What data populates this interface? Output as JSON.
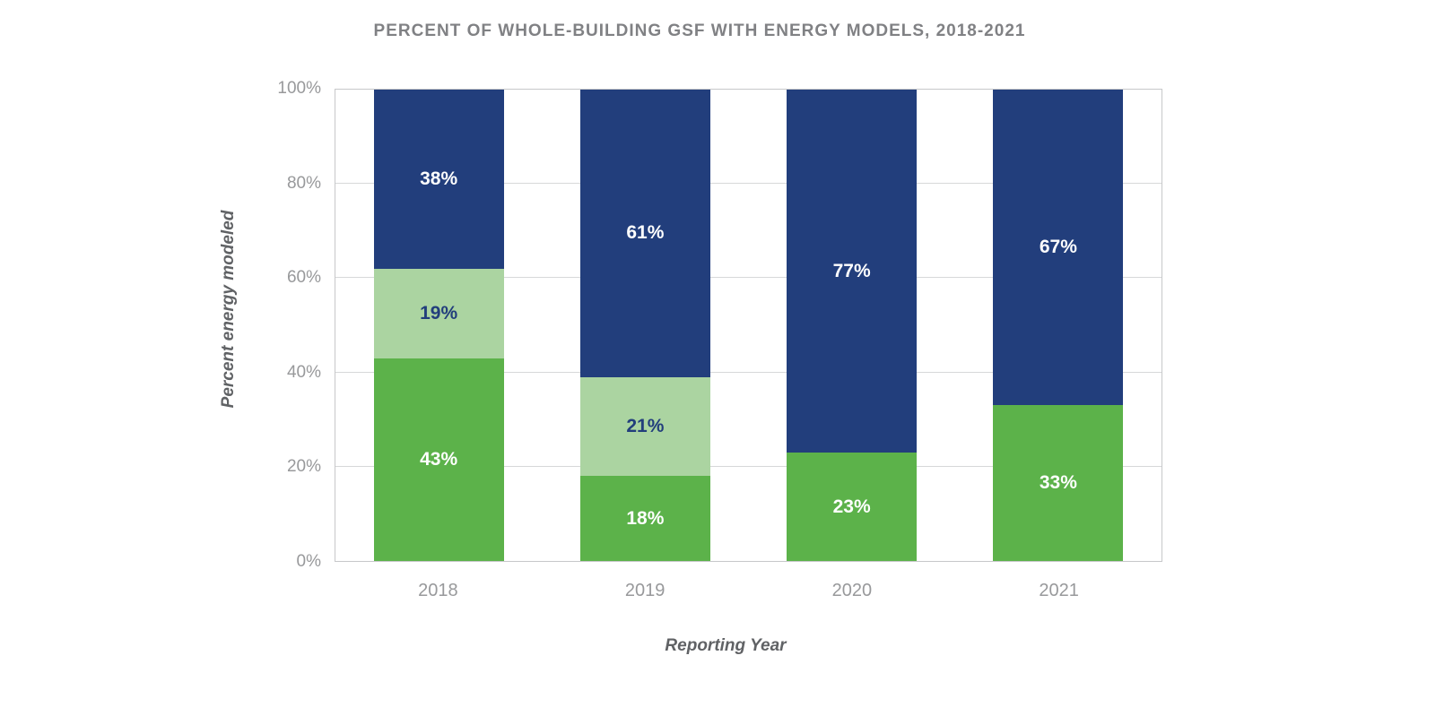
{
  "chart_data": {
    "type": "bar",
    "stacked": true,
    "title": "PERCENT OF WHOLE-BUILDING GSF WITH ENERGY MODELS, 2018-2021",
    "xlabel": "Reporting Year",
    "ylabel": "Percent energy modeled",
    "categories": [
      "2018",
      "2019",
      "2020",
      "2021"
    ],
    "series": [
      {
        "name": "green",
        "color": "#5cb24a",
        "label_color": "#ffffff",
        "values": [
          43,
          18,
          23,
          33
        ]
      },
      {
        "name": "light-green",
        "color": "#abd4a1",
        "label_color": "#223e7c",
        "values": [
          19,
          21,
          0,
          0
        ]
      },
      {
        "name": "navy",
        "color": "#223e7c",
        "label_color": "#ffffff",
        "values": [
          38,
          61,
          77,
          67
        ]
      }
    ],
    "ylim": [
      0,
      100
    ],
    "yticks": [
      0,
      20,
      40,
      60,
      80,
      100
    ],
    "ytick_suffix": "%",
    "label_suffix": "%",
    "grid": true,
    "legend_position": "none"
  },
  "colors": {
    "background": "#ffffff",
    "title": "#808184",
    "axis_label": "#606265",
    "tick": "#98999b",
    "gridline": "#d7d8d9",
    "plot_border": "#c7c8ca"
  }
}
